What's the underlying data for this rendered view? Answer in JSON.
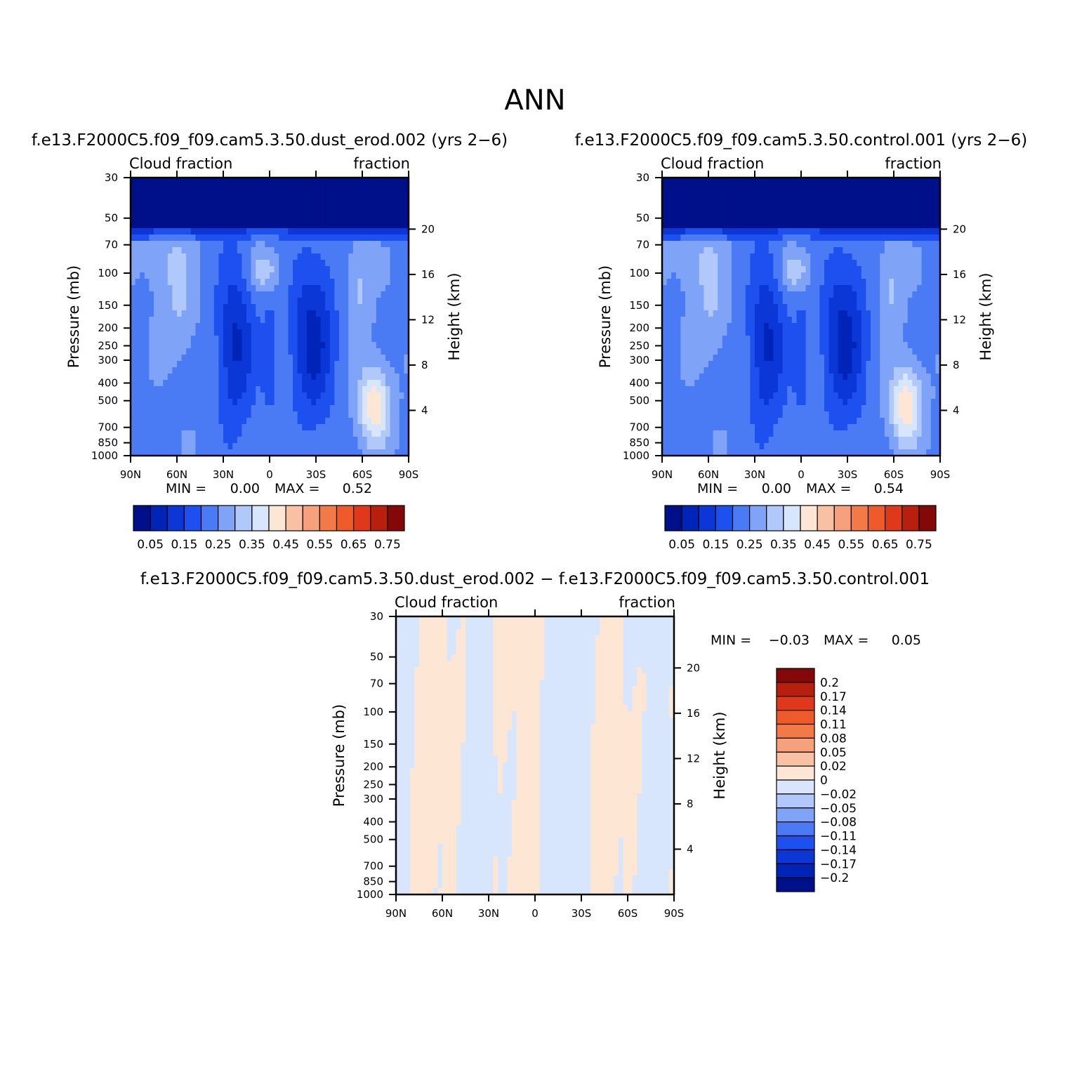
{
  "figure": {
    "title": "ANN"
  },
  "colors": {
    "levels14": [
      "#000f8a",
      "#0024b8",
      "#0a37d6",
      "#1e50f0",
      "#4a7bf5",
      "#7ea3f7",
      "#b1c9fa",
      "#d7e6fc",
      "#fde6d4",
      "#f9c1a4",
      "#f7a07c",
      "#f37a46",
      "#ee5a2a",
      "#e0381a",
      "#b8200d",
      "#850808"
    ],
    "diff16": [
      "#000f8a",
      "#0024b8",
      "#0a37d6",
      "#1e50f0",
      "#4a7bf5",
      "#7ea3f7",
      "#b1c9fa",
      "#d7e6fc",
      "#fde6d4",
      "#f9c1a4",
      "#f7a07c",
      "#f37a46",
      "#ee5a2a",
      "#e0381a",
      "#b8200d",
      "#850808"
    ]
  },
  "panels": [
    {
      "id": "test",
      "title": "f.e13.F2000C5.f09_f09.cam5.3.50.dust_erod.002 (yrs 2−6)",
      "left_label": "Cloud fraction",
      "right_label": "fraction",
      "ylabel": "Pressure (mb)",
      "y2label": "Height (km)",
      "min_text": "MIN =",
      "min_value": "0.00",
      "max_text": "MAX =",
      "max_value": "0.52"
    },
    {
      "id": "control",
      "title": "f.e13.F2000C5.f09_f09.cam5.3.50.control.001 (yrs 2−6)",
      "left_label": "Cloud fraction",
      "right_label": "fraction",
      "ylabel": "Pressure (mb)",
      "y2label": "Height (km)",
      "min_text": "MIN =",
      "min_value": "0.00",
      "max_text": "MAX =",
      "max_value": "0.54"
    },
    {
      "id": "diff",
      "title": "f.e13.F2000C5.f09_f09.cam5.3.50.dust_erod.002 − f.e13.F2000C5.f09_f09.cam5.3.50.control.001",
      "left_label": "Cloud fraction",
      "right_label": "fraction",
      "ylabel": "Pressure (mb)",
      "y2label": "Height (km)",
      "min_text": "MIN =",
      "min_value": "−0.03",
      "max_text": "MAX =",
      "max_value": "0.05"
    }
  ],
  "chart_data": [
    {
      "type": "heatmap",
      "title": "f.e13.F2000C5.f09_f09.cam5.3.50.dust_erod.002 (yrs 2−6)",
      "xlabel": "",
      "ylabel": "Pressure (mb)",
      "y2label": "Height (km)",
      "x_ticks": [
        "90N",
        "60N",
        "30N",
        "0",
        "30S",
        "60S",
        "90S"
      ],
      "x_tick_values": [
        90,
        60,
        30,
        0,
        -30,
        -60,
        -90
      ],
      "y_ticks": [
        "30",
        "50",
        "70",
        "100",
        "150",
        "200",
        "250",
        "300",
        "400",
        "500",
        "700",
        "850",
        "1000"
      ],
      "y_tick_values": [
        30,
        50,
        70,
        100,
        150,
        200,
        250,
        300,
        400,
        500,
        700,
        850,
        1000
      ],
      "y_scale": "log",
      "ylim": [
        1000,
        30
      ],
      "y2_ticks": [
        "20",
        "16",
        "12",
        "8",
        "4"
      ],
      "y2_tick_values_km": [
        20,
        16,
        12,
        8,
        4
      ],
      "colorbar_labels": [
        "0.05",
        "0.15",
        "0.25",
        "0.35",
        "0.45",
        "0.55",
        "0.65",
        "0.75"
      ],
      "min": 0.0,
      "max": 0.52
    },
    {
      "type": "heatmap",
      "title": "f.e13.F2000C5.f09_f09.cam5.3.50.control.001 (yrs 2−6)",
      "xlabel": "",
      "ylabel": "Pressure (mb)",
      "y2label": "Height (km)",
      "x_ticks": [
        "90N",
        "60N",
        "30N",
        "0",
        "30S",
        "60S",
        "90S"
      ],
      "x_tick_values": [
        90,
        60,
        30,
        0,
        -30,
        -60,
        -90
      ],
      "y_ticks": [
        "30",
        "50",
        "70",
        "100",
        "150",
        "200",
        "250",
        "300",
        "400",
        "500",
        "700",
        "850",
        "1000"
      ],
      "y_tick_values": [
        30,
        50,
        70,
        100,
        150,
        200,
        250,
        300,
        400,
        500,
        700,
        850,
        1000
      ],
      "y_scale": "log",
      "ylim": [
        1000,
        30
      ],
      "y2_ticks": [
        "20",
        "16",
        "12",
        "8",
        "4"
      ],
      "y2_tick_values_km": [
        20,
        16,
        12,
        8,
        4
      ],
      "colorbar_labels": [
        "0.05",
        "0.15",
        "0.25",
        "0.35",
        "0.45",
        "0.55",
        "0.65",
        "0.75"
      ],
      "min": 0.0,
      "max": 0.54
    },
    {
      "type": "heatmap",
      "title": "f.e13.F2000C5.f09_f09.cam5.3.50.dust_erod.002 − f.e13.F2000C5.f09_f09.cam5.3.50.control.001",
      "xlabel": "",
      "ylabel": "Pressure (mb)",
      "y2label": "Height (km)",
      "x_ticks": [
        "90N",
        "60N",
        "30N",
        "0",
        "30S",
        "60S",
        "90S"
      ],
      "x_tick_values": [
        90,
        60,
        30,
        0,
        -30,
        -60,
        -90
      ],
      "y_ticks": [
        "30",
        "50",
        "70",
        "100",
        "150",
        "200",
        "250",
        "300",
        "400",
        "500",
        "700",
        "850",
        "1000"
      ],
      "y_tick_values": [
        30,
        50,
        70,
        100,
        150,
        200,
        250,
        300,
        400,
        500,
        700,
        850,
        1000
      ],
      "y_scale": "log",
      "ylim": [
        1000,
        30
      ],
      "y2_ticks": [
        "20",
        "16",
        "12",
        "8",
        "4"
      ],
      "y2_tick_values_km": [
        20,
        16,
        12,
        8,
        4
      ],
      "colorbar_labels": [
        "0.2",
        "0.17",
        "0.14",
        "0.11",
        "0.08",
        "0.05",
        "0.02",
        "0",
        "−0.02",
        "−0.05",
        "−0.08",
        "−0.11",
        "−0.14",
        "−0.17",
        "−0.2"
      ],
      "min": -0.03,
      "max": 0.05
    }
  ]
}
